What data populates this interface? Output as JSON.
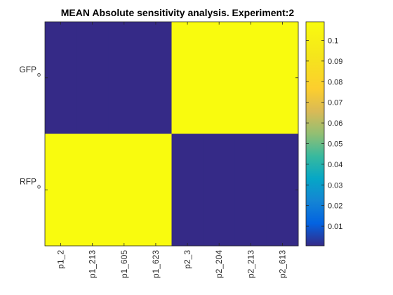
{
  "chart_data": {
    "type": "heatmap",
    "title": "MEAN Absolute sensitivity analysis. Experiment:2",
    "x_categories": [
      "p1_2",
      "p1_213",
      "p1_605",
      "p1_623",
      "p2_3",
      "p2_204",
      "p2_213",
      "p2_613"
    ],
    "y_categories": [
      {
        "base": "GFP",
        "sub": "o"
      },
      {
        "base": "RFP",
        "sub": "o"
      }
    ],
    "values": [
      [
        0.0005,
        0.0005,
        0.0005,
        0.0005,
        0.109,
        0.109,
        0.109,
        0.109
      ],
      [
        0.109,
        0.109,
        0.109,
        0.109,
        0.0005,
        0.0005,
        0.0005,
        0.0005
      ]
    ],
    "colorbar": {
      "range": [
        0.0005,
        0.109
      ],
      "ticks": [
        0.01,
        0.02,
        0.03,
        0.04,
        0.05,
        0.06,
        0.07,
        0.08,
        0.09,
        0.1
      ],
      "tick_labels": [
        "0.01",
        "0.02",
        "0.03",
        "0.04",
        "0.05",
        "0.06",
        "0.07",
        "0.08",
        "0.09",
        "0.1"
      ],
      "colormap": "parula"
    },
    "colors": {
      "low": "#352a87",
      "high": "#f9fb0e",
      "axis": "#262626"
    },
    "grid": false
  }
}
